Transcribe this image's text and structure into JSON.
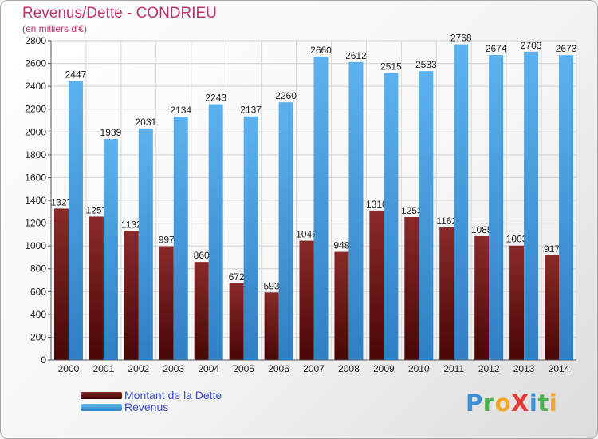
{
  "title": "Revenus/Dette - CONDRIEU",
  "subtitle": "(en milliers d'€)",
  "logo": {
    "text": "ProXiti",
    "letters": [
      {
        "ch": "P",
        "color": "#3a8fd6"
      },
      {
        "ch": "r",
        "color": "#4caf50"
      },
      {
        "ch": "o",
        "color": "#f5a623"
      },
      {
        "ch": "X",
        "color": "#e53935"
      },
      {
        "ch": "i",
        "color": "#3a8fd6"
      },
      {
        "ch": "t",
        "color": "#4caf50"
      },
      {
        "ch": "i",
        "color": "#f5a623"
      }
    ]
  },
  "colors": {
    "debt": "#6b1414",
    "revenue": "#4ea6e6",
    "title": "#c0306a",
    "legend_text": "#3b4fcf"
  },
  "chart_data": {
    "type": "bar",
    "title": "Revenus/Dette - CONDRIEU",
    "subtitle": "(en milliers d'€)",
    "categories": [
      "2000",
      "2001",
      "2002",
      "2003",
      "2004",
      "2005",
      "2006",
      "2007",
      "2008",
      "2009",
      "2010",
      "2011",
      "2012",
      "2013",
      "2014"
    ],
    "series": [
      {
        "name": "Montant de la Dette",
        "values": [
          1327,
          1257,
          1132,
          997,
          860,
          672,
          593,
          1046,
          948,
          1310,
          1253,
          1162,
          1085,
          1003,
          917
        ]
      },
      {
        "name": "Revenus",
        "values": [
          2447,
          1939,
          2031,
          2134,
          2243,
          2137,
          2260,
          2660,
          2612,
          2515,
          2533,
          2768,
          2674,
          2703,
          2673
        ]
      }
    ],
    "ylim": [
      0,
      2800
    ],
    "yticks": [
      0,
      200,
      400,
      600,
      800,
      1000,
      1200,
      1400,
      1600,
      1800,
      2000,
      2200,
      2400,
      2600,
      2800
    ],
    "grid": true,
    "legend": "bottom-left"
  }
}
